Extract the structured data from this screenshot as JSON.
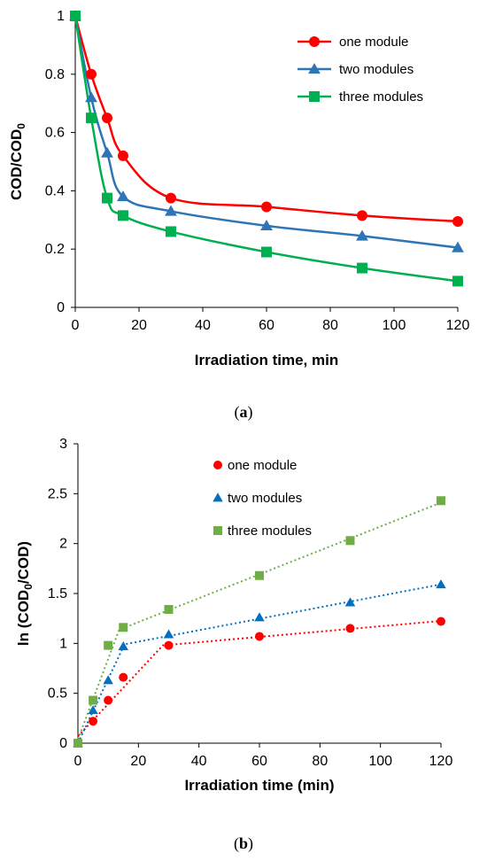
{
  "chart_data": [
    {
      "type": "line",
      "caption_open": "(",
      "caption_letter": "a",
      "caption_close": ")",
      "xlabel": "Irradiation time, min",
      "ylabel_main": "COD/COD",
      "ylabel_sub": "0",
      "xlim": [
        0,
        120
      ],
      "ylim": [
        0,
        1
      ],
      "xticks": [
        0,
        20,
        40,
        60,
        80,
        100,
        120
      ],
      "yticks": [
        0,
        0.2,
        0.4,
        0.6,
        0.8,
        1
      ],
      "ytick_labels": [
        "0",
        "0.2",
        "0.4",
        "0.6",
        "0.8",
        "1"
      ],
      "legend_position": "top-right",
      "line_style": "smooth solid with markers",
      "series": [
        {
          "name": "one module",
          "color": "#ff0000",
          "marker": "circle",
          "x": [
            0,
            5,
            10,
            15,
            30,
            60,
            90,
            120
          ],
          "y": [
            1,
            0.8,
            0.65,
            0.52,
            0.375,
            0.345,
            0.315,
            0.295
          ]
        },
        {
          "name": "two modules",
          "color": "#2e75b6",
          "marker": "triangle",
          "x": [
            0,
            5,
            10,
            15,
            30,
            60,
            90,
            120
          ],
          "y": [
            1,
            0.72,
            0.53,
            0.38,
            0.33,
            0.28,
            0.245,
            0.205
          ]
        },
        {
          "name": "three modules",
          "color": "#00b050",
          "marker": "square",
          "x": [
            0,
            5,
            10,
            15,
            30,
            60,
            90,
            120
          ],
          "y": [
            1,
            0.65,
            0.375,
            0.315,
            0.26,
            0.19,
            0.135,
            0.09
          ]
        }
      ]
    },
    {
      "type": "scatter",
      "caption_open": "(",
      "caption_letter": "b",
      "caption_close": ")",
      "xlabel": "Irradiation time (min)",
      "ylabel_main": "ln (COD",
      "ylabel_sub": "0",
      "ylabel_end": "/COD)",
      "xlim": [
        0,
        120
      ],
      "ylim": [
        0,
        3
      ],
      "xticks": [
        0,
        20,
        40,
        60,
        80,
        100,
        120
      ],
      "yticks": [
        0,
        0.5,
        1,
        1.5,
        2,
        2.5,
        3
      ],
      "ytick_labels": [
        "0",
        "0.5",
        "1",
        "1.5",
        "2",
        "2.5",
        "3"
      ],
      "legend_position": "top-center",
      "line_style": "dotted piecewise linear fits",
      "series": [
        {
          "name": "one module",
          "color": "#ff0000",
          "marker": "circle",
          "x": [
            0,
            5,
            10,
            15,
            30,
            60,
            90,
            120
          ],
          "y": [
            0,
            0.22,
            0.43,
            0.66,
            0.98,
            1.07,
            1.15,
            1.22
          ]
        },
        {
          "name": "two modules",
          "color": "#0070c0",
          "marker": "triangle",
          "x": [
            0,
            5,
            10,
            15,
            30,
            60,
            90,
            120
          ],
          "y": [
            0,
            0.33,
            0.63,
            0.97,
            1.09,
            1.26,
            1.41,
            1.59
          ]
        },
        {
          "name": "three modules",
          "color": "#70ad47",
          "marker": "square",
          "x": [
            0,
            5,
            10,
            15,
            30,
            60,
            90,
            120
          ],
          "y": [
            0,
            0.43,
            0.98,
            1.16,
            1.34,
            1.68,
            2.03,
            2.43
          ]
        }
      ]
    }
  ]
}
